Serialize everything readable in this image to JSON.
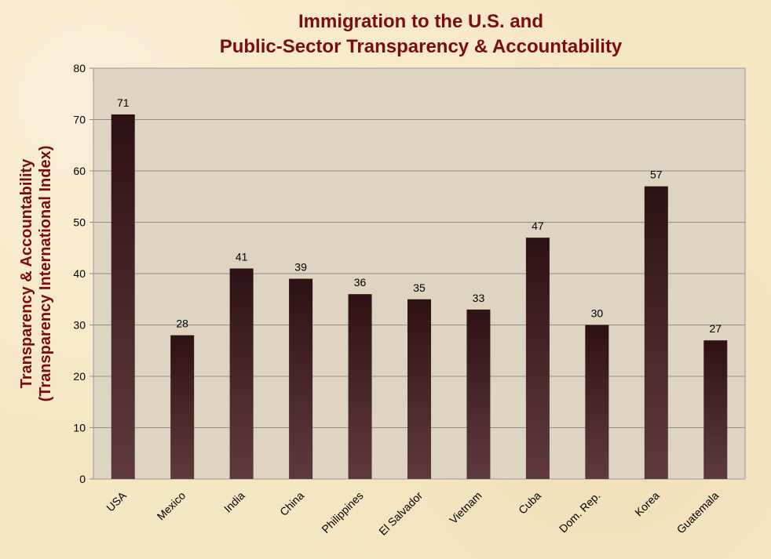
{
  "chart_data": {
    "type": "bar",
    "title": [
      "Immigration to the U.S. and",
      "Public-Sector Transparency & Accountability"
    ],
    "xlabel": "",
    "ylabel": [
      "Transparency & Accountability",
      "(Transparency International Index)"
    ],
    "categories": [
      "USA",
      "Mexico",
      "India",
      "China",
      "Philippines",
      "El Salvador",
      "Vietnam",
      "Cuba",
      "Dom. Rep.",
      "Korea",
      "Guatemala"
    ],
    "values": [
      71,
      28,
      41,
      39,
      36,
      35,
      33,
      47,
      30,
      57,
      27
    ],
    "ylim": [
      0,
      80
    ],
    "yticks": [
      0,
      10,
      20,
      30,
      40,
      50,
      60,
      70,
      80
    ],
    "grid": true,
    "legend": "none",
    "colors": {
      "title": "#7a0c12",
      "plot_bg": "#ddd5c1",
      "bar_top": "#2e1114",
      "bar_bottom": "#5e3a3e",
      "grid": "#8c8c8c"
    }
  }
}
